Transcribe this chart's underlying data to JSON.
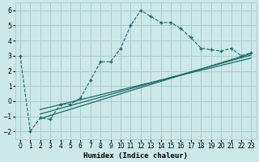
{
  "xlabel": "Humidex (Indice chaleur)",
  "bg_color": "#cce8e8",
  "grid_color": "#aacccc",
  "line_color": "#1a6b6b",
  "xlim": [
    -0.5,
    23.5
  ],
  "ylim": [
    -2.5,
    6.5
  ],
  "xticks": [
    0,
    1,
    2,
    3,
    4,
    5,
    6,
    7,
    8,
    9,
    10,
    11,
    12,
    13,
    14,
    15,
    16,
    17,
    18,
    19,
    20,
    21,
    22,
    23
  ],
  "yticks": [
    -2,
    -1,
    0,
    1,
    2,
    3,
    4,
    5,
    6
  ],
  "curve_x": [
    0,
    1,
    2,
    3,
    4,
    5,
    6,
    7,
    8,
    9,
    10,
    11,
    12,
    13,
    14,
    15,
    16,
    17,
    18,
    19,
    20,
    21,
    22,
    23
  ],
  "curve_y": [
    3.0,
    -2.0,
    -1.1,
    -1.2,
    -0.2,
    -0.2,
    0.2,
    1.4,
    2.6,
    2.6,
    3.5,
    5.0,
    6.0,
    5.6,
    5.2,
    5.2,
    4.8,
    4.2,
    3.5,
    3.4,
    3.3,
    3.5,
    3.0,
    3.2
  ],
  "line1_x": [
    2,
    23
  ],
  "line1_y": [
    -1.15,
    3.15
  ],
  "line2_x": [
    2,
    23
  ],
  "line2_y": [
    -0.85,
    3.05
  ],
  "line3_x": [
    2,
    23
  ],
  "line3_y": [
    -0.55,
    2.85
  ],
  "tick_fontsize": 5.5,
  "xlabel_fontsize": 6.5
}
